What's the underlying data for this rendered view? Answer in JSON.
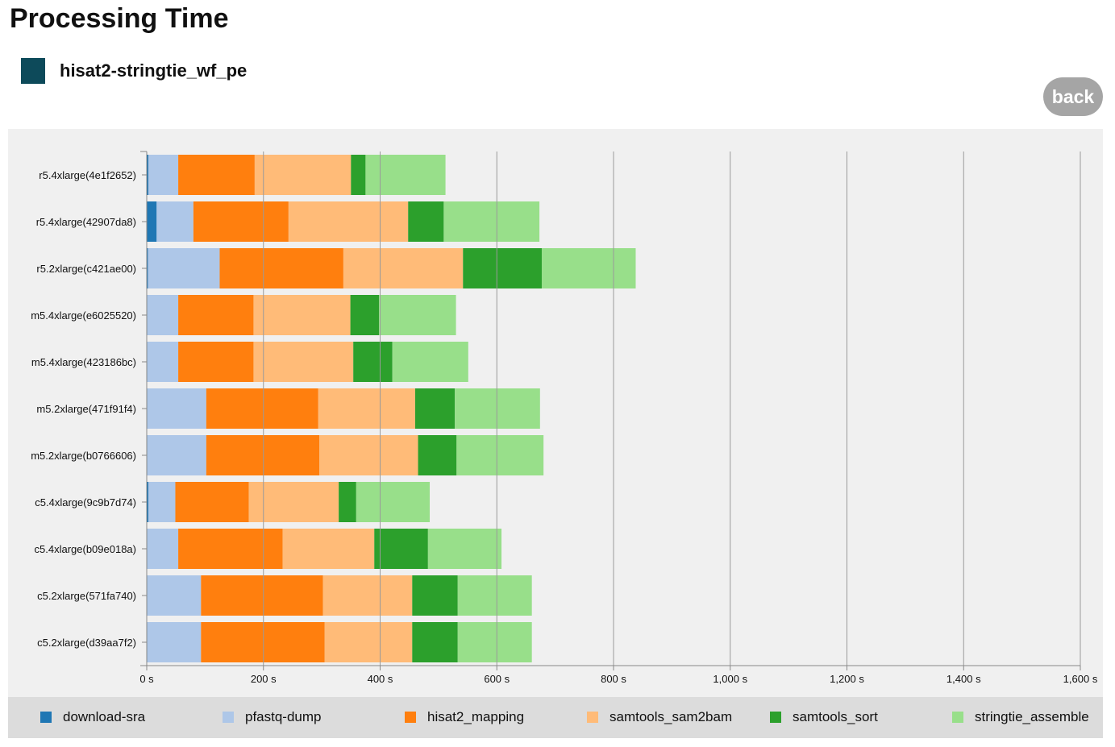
{
  "page": {
    "title": "Processing Time",
    "workflow_name": "hisat2-stringtie_wf_pe",
    "workflow_color": "#0d4a5a",
    "back_label": "back"
  },
  "chart_data": {
    "type": "bar",
    "orientation": "horizontal",
    "stacked": true,
    "categories": [
      "r5.4xlarge(4e1f2652)",
      "r5.4xlarge(42907da8)",
      "r5.2xlarge(c421ae00)",
      "m5.4xlarge(e6025520)",
      "m5.4xlarge(423186bc)",
      "m5.2xlarge(471f91f4)",
      "m5.2xlarge(b0766606)",
      "c5.4xlarge(9c9b7d74)",
      "c5.4xlarge(b09e018a)",
      "c5.2xlarge(571fa740)",
      "c5.2xlarge(d39aa7f2)"
    ],
    "series": [
      {
        "name": "download-sra",
        "color": "#1f77b4",
        "values": [
          3,
          17,
          2,
          1,
          1,
          1,
          1,
          3,
          1,
          1,
          1
        ]
      },
      {
        "name": "pfastq-dump",
        "color": "#aec7e8",
        "values": [
          51,
          63,
          123,
          53,
          53,
          101,
          101,
          46,
          53,
          92,
          92
        ]
      },
      {
        "name": "hisat2_mapping",
        "color": "#ff7f0e",
        "values": [
          131,
          163,
          212,
          129,
          129,
          192,
          194,
          126,
          179,
          209,
          212
        ]
      },
      {
        "name": "samtools_sam2bam",
        "color": "#ffbb78",
        "values": [
          165,
          205,
          205,
          166,
          171,
          166,
          169,
          154,
          157,
          153,
          150
        ]
      },
      {
        "name": "samtools_sort",
        "color": "#2ca02c",
        "values": [
          25,
          61,
          135,
          49,
          67,
          68,
          66,
          30,
          92,
          78,
          78
        ]
      },
      {
        "name": "stringtie_assemble",
        "color": "#98df8a",
        "values": [
          137,
          164,
          161,
          132,
          130,
          146,
          149,
          126,
          126,
          127,
          127
        ]
      }
    ],
    "x_ticks": [
      "0 s",
      "200 s",
      "400 s",
      "600 s",
      "800 s",
      "1,000 s",
      "1,200 s",
      "1,400 s",
      "1,600 s"
    ],
    "x_tick_values": [
      0,
      200,
      400,
      600,
      800,
      1000,
      1200,
      1400,
      1600
    ],
    "xlim": [
      0,
      1600
    ],
    "grid": true,
    "legend_position": "bottom"
  }
}
